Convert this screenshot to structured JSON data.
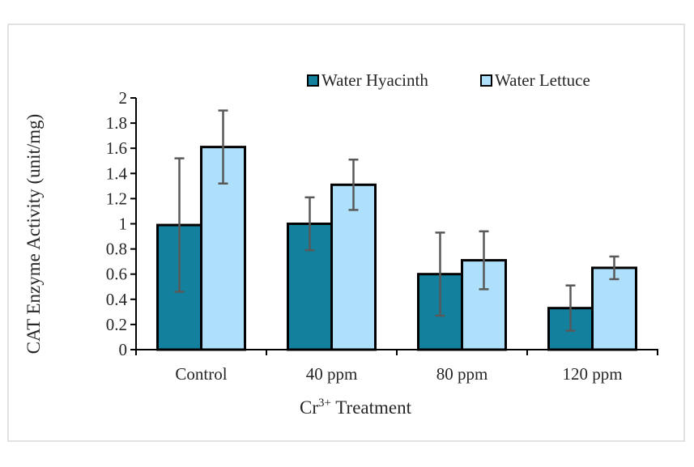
{
  "chart_data": {
    "type": "bar",
    "categories": [
      "Control",
      "40 ppm",
      "80 ppm",
      "120 ppm"
    ],
    "series": [
      {
        "name": "Water Hyacinth",
        "color": "#13809e",
        "values": [
          0.99,
          1.0,
          0.6,
          0.33
        ],
        "error": [
          0.53,
          0.21,
          0.33,
          0.18
        ]
      },
      {
        "name": "Water Lettuce",
        "color": "#aee0fb",
        "values": [
          1.61,
          1.31,
          0.71,
          0.65
        ],
        "error": [
          0.29,
          0.2,
          0.23,
          0.09
        ]
      }
    ],
    "xlabel_main": "Cr",
    "xlabel_sup": "3+",
    "xlabel_rest": " Treatment",
    "ylabel": "CAT Enzyme Activity (unit/mg)",
    "ylim": [
      0,
      2
    ],
    "yticks": [
      "0",
      "0.2",
      "0.4",
      "0.6",
      "0.8",
      "1",
      "1.2",
      "1.4",
      "1.6",
      "1.8",
      "2"
    ],
    "grid": false,
    "legend_position": "top"
  }
}
